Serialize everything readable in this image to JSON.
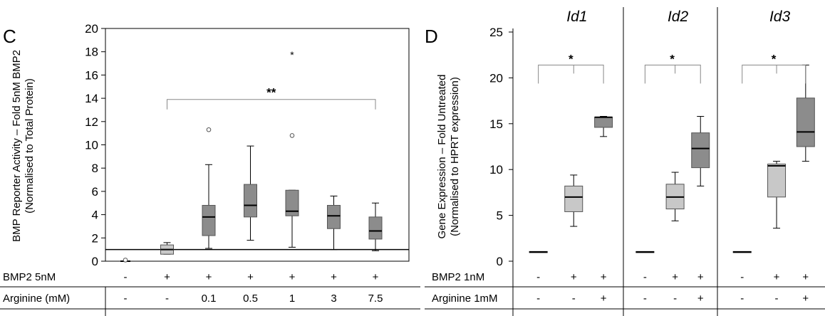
{
  "chart_data": [
    {
      "panel": "C",
      "type": "box",
      "ylabel": [
        "BMP Reporter Activity – Fold 5nM BMP2",
        "(Normalised to Total Protein)"
      ],
      "ylim": [
        0,
        20
      ],
      "yticks": [
        0,
        2,
        4,
        6,
        8,
        10,
        12,
        14,
        16,
        18,
        20
      ],
      "reference_line": 1,
      "rows": [
        {
          "label": "BMP2 5nM",
          "values": [
            "-",
            "+",
            "+",
            "+",
            "+",
            "+",
            "+"
          ]
        },
        {
          "label": "Arginine (mM)",
          "values": [
            "-",
            "-",
            "0.1",
            "0.5",
            "1",
            "3",
            "7.5"
          ]
        }
      ],
      "boxes": [
        {
          "min": 0.0,
          "q1": 0.0,
          "median": 0.0,
          "q3": 0.05,
          "max": 0.05,
          "color": "#c8c8c8",
          "outliers": [
            0.1
          ]
        },
        {
          "min": 0.6,
          "q1": 0.6,
          "median": 1.0,
          "q3": 1.4,
          "max": 1.6,
          "color": "#c8c8c8",
          "outliers": []
        },
        {
          "min": 1.1,
          "q1": 2.2,
          "median": 3.8,
          "q3": 4.8,
          "max": 8.3,
          "color": "#8c8c8c",
          "outliers": [
            11.3
          ]
        },
        {
          "min": 1.8,
          "q1": 3.8,
          "median": 4.8,
          "q3": 6.6,
          "max": 9.9,
          "color": "#8c8c8c",
          "outliers": []
        },
        {
          "min": 1.2,
          "q1": 3.9,
          "median": 4.3,
          "q3": 6.1,
          "max": 6.1,
          "color": "#8c8c8c",
          "outliers": [
            10.8,
            17.8
          ]
        },
        {
          "min": 1.0,
          "q1": 2.8,
          "median": 3.9,
          "q3": 4.8,
          "max": 5.6,
          "color": "#8c8c8c",
          "outliers": []
        },
        {
          "min": 0.9,
          "q1": 1.9,
          "median": 2.6,
          "q3": 3.8,
          "max": 5.0,
          "color": "#8c8c8c",
          "outliers": []
        }
      ],
      "significance": {
        "label": "**",
        "from_box": 1,
        "to_box": 6,
        "level": 13.9
      }
    },
    {
      "panel": "D",
      "type": "box",
      "ylabel": [
        "Gene Expression – Fold Untreated",
        "(Normalised to HPRT expression)"
      ],
      "ylim": [
        0,
        25
      ],
      "yticks": [
        0,
        5,
        10,
        15,
        20,
        25
      ],
      "rows": [
        {
          "label": "BMP2 1nM",
          "values": [
            "-",
            "+",
            "+"
          ]
        },
        {
          "label": "Arginine 1mM",
          "values": [
            "-",
            "-",
            "+"
          ]
        }
      ],
      "groups": [
        {
          "title": "Id1",
          "boxes": [
            {
              "min": 1,
              "q1": 1,
              "median": 1,
              "q3": 1,
              "max": 1,
              "color": "#000000"
            },
            {
              "min": 3.8,
              "q1": 5.4,
              "median": 7.0,
              "q3": 8.2,
              "max": 9.4,
              "color": "#c8c8c8"
            },
            {
              "min": 13.6,
              "q1": 14.6,
              "median": 15.7,
              "q3": 15.7,
              "max": 15.8,
              "color": "#8c8c8c"
            }
          ],
          "significance": {
            "label": "*",
            "level": 21.4
          }
        },
        {
          "title": "Id2",
          "boxes": [
            {
              "min": 1,
              "q1": 1,
              "median": 1,
              "q3": 1,
              "max": 1,
              "color": "#000000"
            },
            {
              "min": 4.4,
              "q1": 5.7,
              "median": 7.0,
              "q3": 8.4,
              "max": 9.7,
              "color": "#c8c8c8"
            },
            {
              "min": 8.2,
              "q1": 10.2,
              "median": 12.3,
              "q3": 14.0,
              "max": 15.8,
              "color": "#8c8c8c"
            }
          ],
          "significance": {
            "label": "*",
            "level": 21.4
          }
        },
        {
          "title": "Id3",
          "boxes": [
            {
              "min": 1,
              "q1": 1,
              "median": 1,
              "q3": 1,
              "max": 1,
              "color": "#000000"
            },
            {
              "min": 3.6,
              "q1": 7.0,
              "median": 10.4,
              "q3": 10.6,
              "max": 10.9,
              "color": "#c8c8c8"
            },
            {
              "min": 10.9,
              "q1": 12.5,
              "median": 14.1,
              "q3": 17.8,
              "max": 21.4,
              "color": "#8c8c8c"
            }
          ],
          "significance": {
            "label": "*",
            "level": 21.4
          }
        }
      ]
    }
  ]
}
